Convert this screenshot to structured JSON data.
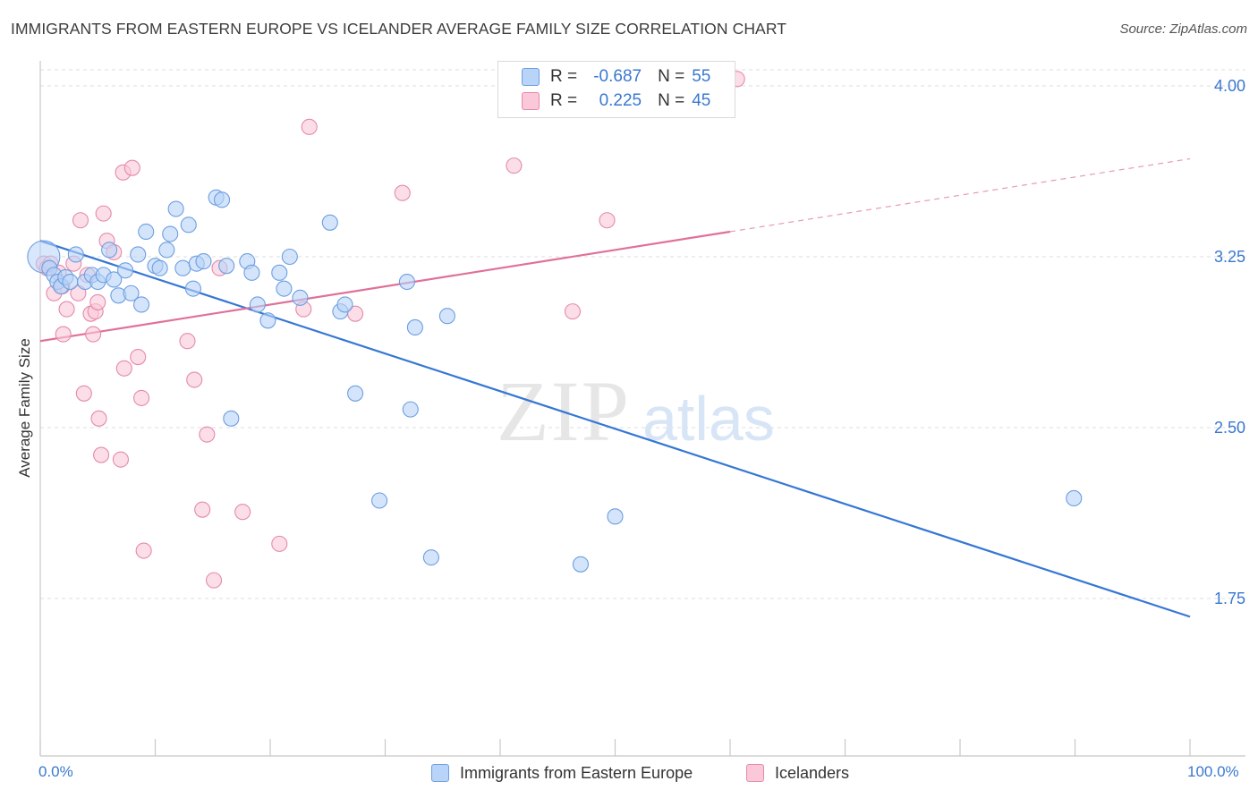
{
  "title": "IMMIGRANTS FROM EASTERN EUROPE VS ICELANDER AVERAGE FAMILY SIZE CORRELATION CHART",
  "source": "Source: ZipAtlas.com",
  "watermark": {
    "part1": "ZIP",
    "part2": "atlas"
  },
  "legend": {
    "r_label": "R =",
    "n_label": "N =",
    "series": [
      {
        "name": "Immigrants from Eastern Europe",
        "r": "-0.687",
        "n": "55",
        "fill": "#b8d4f8",
        "stroke": "#6d9ee0"
      },
      {
        "name": "Icelanders",
        "r": "0.225",
        "n": "45",
        "fill": "#fac8d8",
        "stroke": "#e48aaa"
      }
    ]
  },
  "chart_data": {
    "type": "scatter",
    "title": "IMMIGRANTS FROM EASTERN EUROPE VS ICELANDER AVERAGE FAMILY SIZE CORRELATION CHART",
    "xlabel": "",
    "ylabel": "Average Family Size",
    "xlim": [
      0,
      100
    ],
    "ylim": [
      1.0,
      4.1
    ],
    "x_tick_labels": [
      "0.0%",
      "100.0%"
    ],
    "y_ticks": [
      4.0,
      3.25,
      2.5,
      1.75
    ],
    "y_tick_labels": [
      "4.00",
      "3.25",
      "2.50",
      "1.75"
    ],
    "grid": true,
    "series": [
      {
        "name": "Immigrants from Eastern Europe",
        "color": "#6d9ee0",
        "fill": "#b8d4f8",
        "trend": {
          "x": [
            0,
            100
          ],
          "y": [
            3.32,
            1.67
          ],
          "style": "solid",
          "color": "#3577d4"
        },
        "points": [
          {
            "x": 0.3,
            "y": 3.25,
            "big": true
          },
          {
            "x": 0.8,
            "y": 3.2
          },
          {
            "x": 1.2,
            "y": 3.17
          },
          {
            "x": 1.5,
            "y": 3.14
          },
          {
            "x": 1.8,
            "y": 3.12
          },
          {
            "x": 2.2,
            "y": 3.16
          },
          {
            "x": 2.6,
            "y": 3.14
          },
          {
            "x": 3.1,
            "y": 3.26
          },
          {
            "x": 3.9,
            "y": 3.14
          },
          {
            "x": 4.5,
            "y": 3.17
          },
          {
            "x": 5.0,
            "y": 3.14
          },
          {
            "x": 5.5,
            "y": 3.17
          },
          {
            "x": 6.0,
            "y": 3.28
          },
          {
            "x": 6.4,
            "y": 3.15
          },
          {
            "x": 6.8,
            "y": 3.08
          },
          {
            "x": 7.4,
            "y": 3.19
          },
          {
            "x": 7.9,
            "y": 3.09
          },
          {
            "x": 8.5,
            "y": 3.26
          },
          {
            "x": 8.8,
            "y": 3.04
          },
          {
            "x": 9.2,
            "y": 3.36
          },
          {
            "x": 10.0,
            "y": 3.21
          },
          {
            "x": 10.4,
            "y": 3.2
          },
          {
            "x": 11.0,
            "y": 3.28
          },
          {
            "x": 11.3,
            "y": 3.35
          },
          {
            "x": 11.8,
            "y": 3.46
          },
          {
            "x": 12.4,
            "y": 3.2
          },
          {
            "x": 12.9,
            "y": 3.39
          },
          {
            "x": 13.3,
            "y": 3.11
          },
          {
            "x": 13.6,
            "y": 3.22
          },
          {
            "x": 14.2,
            "y": 3.23
          },
          {
            "x": 15.3,
            "y": 3.51
          },
          {
            "x": 15.8,
            "y": 3.5
          },
          {
            "x": 16.2,
            "y": 3.21
          },
          {
            "x": 16.6,
            "y": 2.54
          },
          {
            "x": 18.0,
            "y": 3.23
          },
          {
            "x": 18.4,
            "y": 3.18
          },
          {
            "x": 18.9,
            "y": 3.04
          },
          {
            "x": 19.8,
            "y": 2.97
          },
          {
            "x": 20.8,
            "y": 3.18
          },
          {
            "x": 21.2,
            "y": 3.11
          },
          {
            "x": 21.7,
            "y": 3.25
          },
          {
            "x": 22.6,
            "y": 3.07
          },
          {
            "x": 25.2,
            "y": 3.4
          },
          {
            "x": 26.1,
            "y": 3.01
          },
          {
            "x": 26.5,
            "y": 3.04
          },
          {
            "x": 27.4,
            "y": 2.65
          },
          {
            "x": 29.5,
            "y": 2.18
          },
          {
            "x": 31.9,
            "y": 3.14
          },
          {
            "x": 32.2,
            "y": 2.58
          },
          {
            "x": 32.6,
            "y": 2.94
          },
          {
            "x": 34.0,
            "y": 1.93
          },
          {
            "x": 35.4,
            "y": 2.99
          },
          {
            "x": 47.0,
            "y": 1.9
          },
          {
            "x": 50.0,
            "y": 2.11
          },
          {
            "x": 89.9,
            "y": 2.19
          }
        ]
      },
      {
        "name": "Icelanders",
        "color": "#e48aaa",
        "fill": "#fac8d8",
        "trend": {
          "x": [
            0,
            60,
            100
          ],
          "y": [
            2.88,
            3.36,
            3.68
          ],
          "style": "solid-then-dashed",
          "color": "#e0709a"
        },
        "points": [
          {
            "x": 0.3,
            "y": 3.22
          },
          {
            "x": 0.6,
            "y": 3.2
          },
          {
            "x": 0.9,
            "y": 3.22
          },
          {
            "x": 1.2,
            "y": 3.09
          },
          {
            "x": 1.6,
            "y": 3.18
          },
          {
            "x": 1.9,
            "y": 3.12
          },
          {
            "x": 2.0,
            "y": 2.91
          },
          {
            "x": 2.3,
            "y": 3.02
          },
          {
            "x": 2.9,
            "y": 3.22
          },
          {
            "x": 3.3,
            "y": 3.09
          },
          {
            "x": 3.5,
            "y": 3.41
          },
          {
            "x": 3.8,
            "y": 2.65
          },
          {
            "x": 4.1,
            "y": 3.17
          },
          {
            "x": 4.4,
            "y": 3.0
          },
          {
            "x": 4.6,
            "y": 2.91
          },
          {
            "x": 4.8,
            "y": 3.01
          },
          {
            "x": 5.0,
            "y": 3.05
          },
          {
            "x": 5.1,
            "y": 2.54
          },
          {
            "x": 5.3,
            "y": 2.38
          },
          {
            "x": 5.5,
            "y": 3.44
          },
          {
            "x": 5.8,
            "y": 3.32
          },
          {
            "x": 6.4,
            "y": 3.27
          },
          {
            "x": 7.0,
            "y": 2.36
          },
          {
            "x": 7.2,
            "y": 3.62
          },
          {
            "x": 7.3,
            "y": 2.76
          },
          {
            "x": 8.0,
            "y": 3.64
          },
          {
            "x": 8.5,
            "y": 2.81
          },
          {
            "x": 8.8,
            "y": 2.63
          },
          {
            "x": 9.0,
            "y": 1.96
          },
          {
            "x": 12.8,
            "y": 2.88
          },
          {
            "x": 13.4,
            "y": 2.71
          },
          {
            "x": 14.1,
            "y": 2.14
          },
          {
            "x": 14.5,
            "y": 2.47
          },
          {
            "x": 15.1,
            "y": 1.83
          },
          {
            "x": 15.6,
            "y": 3.2
          },
          {
            "x": 17.6,
            "y": 2.13
          },
          {
            "x": 20.8,
            "y": 1.99
          },
          {
            "x": 22.9,
            "y": 3.02
          },
          {
            "x": 23.4,
            "y": 3.82
          },
          {
            "x": 27.4,
            "y": 3.0
          },
          {
            "x": 31.5,
            "y": 3.53
          },
          {
            "x": 41.2,
            "y": 3.65
          },
          {
            "x": 46.3,
            "y": 3.01
          },
          {
            "x": 49.3,
            "y": 3.41
          },
          {
            "x": 60.6,
            "y": 4.03
          }
        ]
      }
    ]
  }
}
